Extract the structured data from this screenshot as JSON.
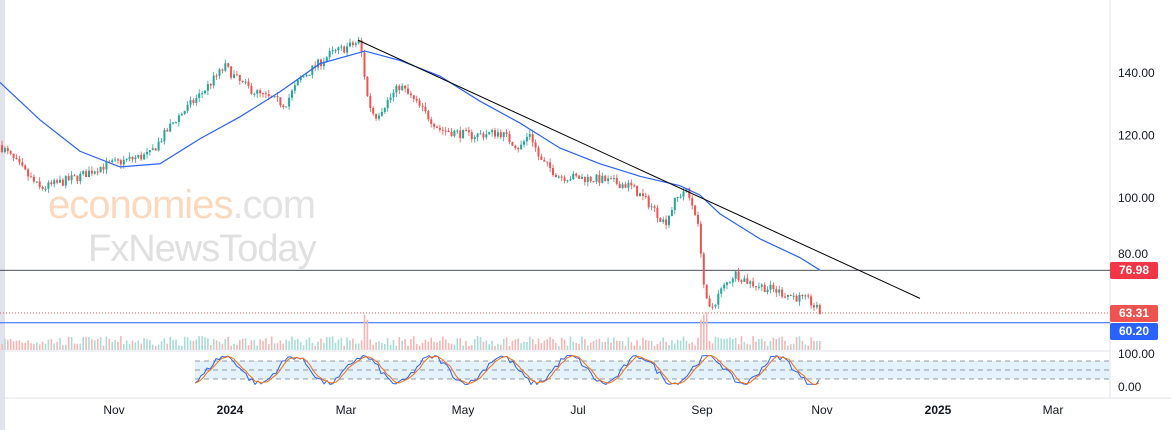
{
  "watermark": {
    "brand": "economies",
    "suffix": ".com",
    "second": "FxNewsToday"
  },
  "price_axis": [
    "140.00",
    "120.00",
    "100.00",
    "80.00"
  ],
  "osc_axis": [
    "100.00",
    "0.00"
  ],
  "time_axis": [
    "Nov",
    "2024",
    "Mar",
    "May",
    "Jul",
    "Sep",
    "Nov",
    "2025",
    "Mar"
  ],
  "tags": {
    "resistance": "76.98",
    "last": "63.31",
    "support": "60.20"
  },
  "colors": {
    "up": "#26a69a",
    "down": "#ef5350",
    "ma": "#2962ff",
    "support": "#2962ff",
    "resistance": "#f23645",
    "trend": "#000000"
  },
  "chart_data": {
    "type": "line",
    "title": "",
    "ylim": [
      55,
      152
    ],
    "price_path": [
      [
        0,
        117
      ],
      [
        40,
        103
      ],
      [
        80,
        107
      ],
      [
        100,
        110
      ],
      [
        150,
        114
      ],
      [
        175,
        125
      ],
      [
        200,
        133
      ],
      [
        225,
        142
      ],
      [
        240,
        137
      ],
      [
        260,
        133
      ],
      [
        285,
        130
      ],
      [
        300,
        138
      ],
      [
        330,
        146
      ],
      [
        360,
        150
      ],
      [
        368,
        131
      ],
      [
        375,
        126
      ],
      [
        400,
        136
      ],
      [
        420,
        129
      ],
      [
        440,
        122
      ],
      [
        470,
        120
      ],
      [
        500,
        121
      ],
      [
        520,
        116
      ],
      [
        530,
        121
      ],
      [
        540,
        112
      ],
      [
        560,
        107
      ],
      [
        600,
        106
      ],
      [
        630,
        104
      ],
      [
        650,
        98
      ],
      [
        665,
        92
      ],
      [
        675,
        99
      ],
      [
        685,
        103
      ],
      [
        695,
        96
      ],
      [
        700,
        87
      ],
      [
        705,
        68
      ],
      [
        710,
        64
      ],
      [
        720,
        70
      ],
      [
        735,
        76
      ],
      [
        750,
        73
      ],
      [
        770,
        71
      ],
      [
        790,
        69
      ],
      [
        810,
        67
      ],
      [
        820,
        63.3
      ]
    ],
    "ma_path": [
      [
        0,
        137
      ],
      [
        40,
        125
      ],
      [
        80,
        115
      ],
      [
        120,
        110
      ],
      [
        160,
        111
      ],
      [
        200,
        119
      ],
      [
        240,
        126
      ],
      [
        280,
        134
      ],
      [
        320,
        143
      ],
      [
        365,
        147
      ],
      [
        400,
        144
      ],
      [
        440,
        139
      ],
      [
        480,
        131
      ],
      [
        520,
        124
      ],
      [
        560,
        116
      ],
      [
        600,
        111
      ],
      [
        640,
        107
      ],
      [
        680,
        104
      ],
      [
        700,
        101
      ],
      [
        720,
        95
      ],
      [
        760,
        87
      ],
      [
        800,
        81
      ],
      [
        820,
        77
      ]
    ],
    "trendline": [
      [
        358,
        150.5
      ],
      [
        920,
        68
      ]
    ],
    "levels": {
      "resistance": 76.98,
      "last": 63.31,
      "support": 60.2
    },
    "oscillator": {
      "range": [
        0,
        100
      ],
      "bands": [
        20,
        80
      ]
    }
  }
}
